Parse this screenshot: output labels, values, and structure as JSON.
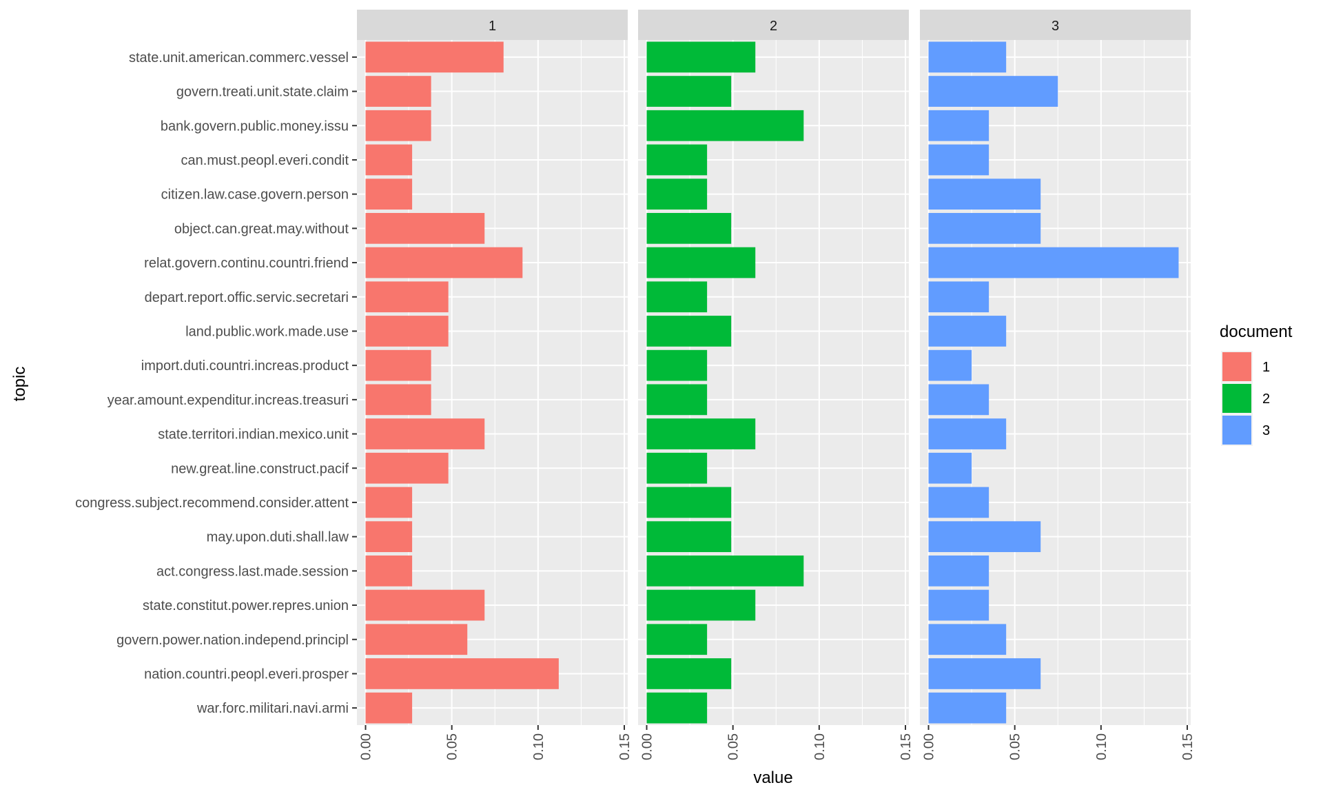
{
  "chart_data": {
    "type": "bar",
    "orientation": "horizontal",
    "facet_by": "document",
    "xlabel": "value",
    "ylabel": "topic",
    "xlim": [
      -0.005,
      0.152
    ],
    "x_ticks": [
      "0.00",
      "0.05",
      "0.10",
      "0.15"
    ],
    "x_tick_values": [
      0,
      0.05,
      0.1,
      0.15
    ],
    "grid": true,
    "legend": {
      "title": "document",
      "placement": "right",
      "entries": [
        "1",
        "2",
        "3"
      ]
    },
    "categories": [
      "state.unit.american.commerc.vessel",
      "govern.treati.unit.state.claim",
      "bank.govern.public.money.issu",
      "can.must.peopl.everi.condit",
      "citizen.law.case.govern.person",
      "object.can.great.may.without",
      "relat.govern.continu.countri.friend",
      "depart.report.offic.servic.secretari",
      "land.public.work.made.use",
      "import.duti.countri.increas.product",
      "year.amount.expenditur.increas.treasuri",
      "state.territori.indian.mexico.unit",
      "new.great.line.construct.pacif",
      "congress.subject.recommend.consider.attent",
      "may.upon.duti.shall.law",
      "act.congress.last.made.session",
      "state.constitut.power.repres.union",
      "govern.power.nation.independ.principl",
      "nation.countri.peopl.everi.prosper",
      "war.forc.militari.navi.armi"
    ],
    "series": [
      {
        "name": "1",
        "color": "#F8766D",
        "values": [
          0.08,
          0.038,
          0.038,
          0.027,
          0.027,
          0.069,
          0.091,
          0.048,
          0.048,
          0.038,
          0.038,
          0.069,
          0.048,
          0.027,
          0.027,
          0.027,
          0.069,
          0.059,
          0.112,
          0.027
        ]
      },
      {
        "name": "2",
        "color": "#00BA38",
        "values": [
          0.063,
          0.049,
          0.091,
          0.035,
          0.035,
          0.049,
          0.063,
          0.035,
          0.049,
          0.035,
          0.035,
          0.063,
          0.035,
          0.049,
          0.049,
          0.091,
          0.063,
          0.035,
          0.049,
          0.035
        ]
      },
      {
        "name": "3",
        "color": "#619CFF",
        "values": [
          0.045,
          0.075,
          0.035,
          0.035,
          0.065,
          0.065,
          0.145,
          0.035,
          0.045,
          0.025,
          0.035,
          0.045,
          0.025,
          0.035,
          0.065,
          0.035,
          0.035,
          0.045,
          0.065,
          0.045
        ]
      }
    ]
  }
}
